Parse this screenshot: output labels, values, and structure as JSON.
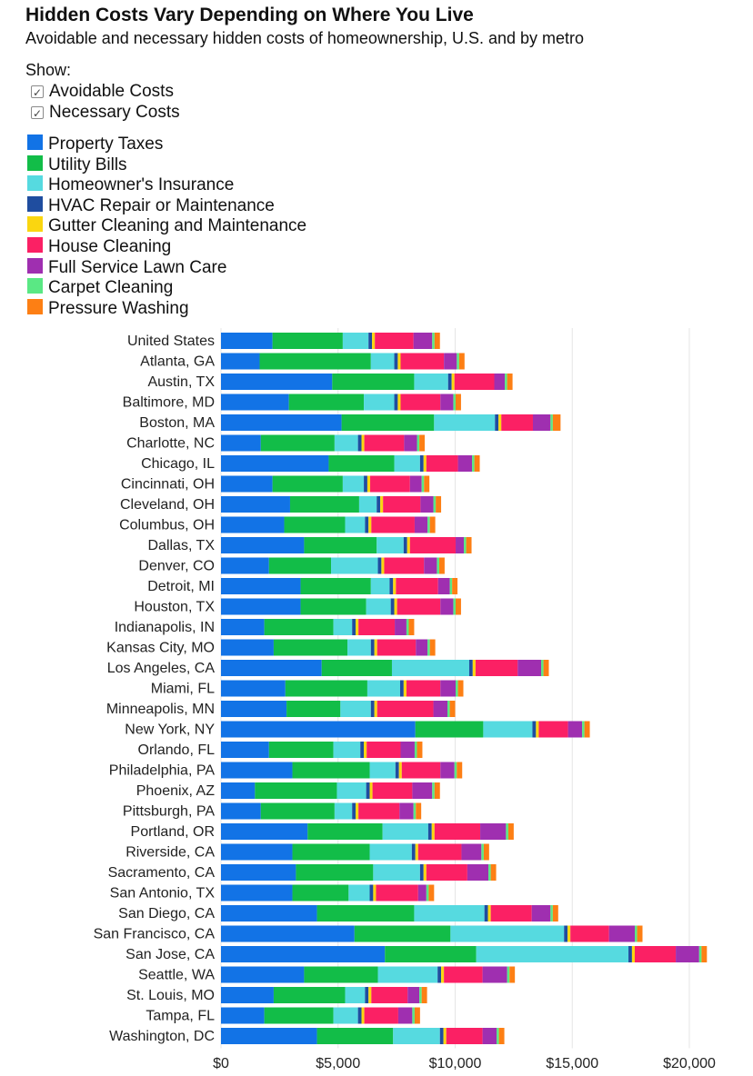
{
  "header": {
    "title": "Hidden Costs Vary Depending on Where You Live",
    "subtitle": "Avoidable and necessary hidden costs of homeownership, U.S. and by metro"
  },
  "controls": {
    "show_label": "Show:",
    "check_mark": "✓",
    "checkboxes": [
      {
        "label": "Avoidable Costs",
        "checked": true
      },
      {
        "label": "Necessary Costs",
        "checked": true
      }
    ]
  },
  "chart_data": {
    "type": "bar",
    "orientation": "horizontal",
    "stacked": true,
    "title": "",
    "xlabel": "",
    "ylabel": "",
    "xlim": [
      0,
      20500
    ],
    "x_ticks": [
      0,
      5000,
      10000,
      15000,
      20000
    ],
    "x_tick_labels": [
      "$0",
      "$5,000",
      "$10,000",
      "$15,000",
      "$20,000"
    ],
    "grid": true,
    "legend_position": "top-left",
    "categories": [
      "United States",
      "Atlanta, GA",
      "Austin, TX",
      "Baltimore, MD",
      "Boston, MA",
      "Charlotte, NC",
      "Chicago, IL",
      "Cincinnati, OH",
      "Cleveland, OH",
      "Columbus, OH",
      "Dallas, TX",
      "Denver, CO",
      "Detroit, MI",
      "Houston, TX",
      "Indianapolis, IN",
      "Kansas City, MO",
      "Los Angeles, CA",
      "Miami, FL",
      "Minneapolis, MN",
      "New York, NY",
      "Orlando, FL",
      "Philadelphia, PA",
      "Phoenix, AZ",
      "Pittsburgh, PA",
      "Portland, OR",
      "Riverside, CA",
      "Sacramento, CA",
      "San Antonio, TX",
      "San Diego, CA",
      "San Francisco, CA",
      "San Jose, CA",
      "Seattle, WA",
      "St. Louis, MO",
      "Tampa, FL",
      "Washington, DC"
    ],
    "series": [
      {
        "name": "Property Taxes",
        "color": "#1273e6",
        "values": [
          2200,
          1650,
          4750,
          2900,
          5150,
          1700,
          4600,
          2200,
          2950,
          2700,
          3550,
          2050,
          3400,
          3400,
          1850,
          2250,
          4300,
          2750,
          2800,
          8300,
          2050,
          3050,
          1450,
          1700,
          3700,
          3050,
          3200,
          3050,
          4100,
          5700,
          7000,
          3550,
          2250,
          1850,
          4100
        ]
      },
      {
        "name": "Utility Bills",
        "color": "#12bd48",
        "values": [
          3000,
          4750,
          3500,
          3200,
          3950,
          3150,
          2800,
          3000,
          2950,
          2600,
          3100,
          2650,
          3000,
          2800,
          2950,
          3150,
          3000,
          3500,
          2300,
          2900,
          2750,
          3300,
          3500,
          3150,
          3200,
          3300,
          3300,
          2400,
          4150,
          4100,
          3900,
          3150,
          3050,
          2950,
          3250
        ]
      },
      {
        "name": "Homeowner's Insurance",
        "color": "#56dae0",
        "values": [
          1100,
          1000,
          1450,
          1300,
          2600,
          1000,
          1100,
          900,
          750,
          850,
          1150,
          2000,
          800,
          1050,
          800,
          1000,
          3300,
          1400,
          1300,
          2100,
          1150,
          1100,
          1250,
          750,
          1950,
          1800,
          2000,
          900,
          3000,
          4850,
          6500,
          2550,
          850,
          1050,
          2000
        ]
      },
      {
        "name": "HVAC Repair or Maintenance",
        "color": "#1f4d9f",
        "values": [
          150,
          150,
          150,
          150,
          150,
          150,
          150,
          150,
          150,
          150,
          150,
          150,
          150,
          150,
          150,
          150,
          150,
          150,
          150,
          150,
          150,
          150,
          150,
          150,
          150,
          150,
          150,
          150,
          150,
          150,
          150,
          150,
          150,
          150,
          150
        ]
      },
      {
        "name": "Gutter Cleaning and Maintenance",
        "color": "#fad610",
        "values": [
          120,
          120,
          120,
          120,
          120,
          120,
          120,
          120,
          120,
          120,
          120,
          120,
          120,
          120,
          120,
          120,
          120,
          120,
          120,
          120,
          120,
          120,
          120,
          120,
          120,
          120,
          120,
          120,
          120,
          120,
          120,
          120,
          120,
          120,
          120
        ]
      },
      {
        "name": "House Cleaning",
        "color": "#fb2064",
        "values": [
          1650,
          1850,
          1700,
          1700,
          1350,
          1700,
          1350,
          1700,
          1600,
          1850,
          1950,
          1700,
          1800,
          1850,
          1550,
          1650,
          1800,
          1450,
          2400,
          1250,
          1450,
          1650,
          1700,
          1750,
          1950,
          1850,
          1750,
          1800,
          1750,
          1650,
          1750,
          1650,
          1550,
          1450,
          1550
        ]
      },
      {
        "name": "Full Service Lawn Care",
        "color": "#9f2fb0",
        "values": [
          800,
          550,
          450,
          550,
          750,
          550,
          600,
          500,
          550,
          550,
          350,
          550,
          500,
          550,
          500,
          500,
          1000,
          650,
          600,
          600,
          600,
          600,
          850,
          600,
          1100,
          850,
          900,
          350,
          800,
          1100,
          1000,
          1050,
          500,
          600,
          600
        ]
      },
      {
        "name": "Carpet Cleaning",
        "color": "#5ae884",
        "values": [
          100,
          100,
          100,
          100,
          100,
          100,
          100,
          100,
          100,
          100,
          100,
          100,
          100,
          100,
          100,
          100,
          100,
          100,
          100,
          100,
          100,
          100,
          100,
          100,
          100,
          100,
          100,
          100,
          100,
          100,
          100,
          100,
          100,
          100,
          100
        ]
      },
      {
        "name": "Pressure Washing",
        "color": "#fd7f14",
        "values": [
          230,
          230,
          230,
          230,
          330,
          230,
          230,
          230,
          230,
          230,
          230,
          230,
          230,
          230,
          230,
          230,
          230,
          230,
          230,
          230,
          230,
          230,
          230,
          230,
          230,
          230,
          230,
          230,
          230,
          230,
          230,
          230,
          230,
          230,
          230
        ]
      }
    ]
  }
}
